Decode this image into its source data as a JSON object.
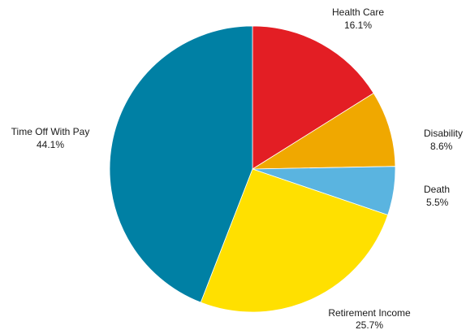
{
  "chart_data": {
    "type": "pie",
    "title": "",
    "slices": [
      {
        "label": "Health Care",
        "value": 16.1,
        "value_label": "16.1%",
        "color": "#e31e24"
      },
      {
        "label": "Disability",
        "value": 8.6,
        "value_label": "8.6%",
        "color": "#f0a800"
      },
      {
        "label": "Death",
        "value": 5.5,
        "value_label": "5.5%",
        "color": "#5ab4e0"
      },
      {
        "label": "Retirement Income",
        "value": 25.7,
        "value_label": "25.7%",
        "color": "#ffe000"
      },
      {
        "label": "Time Off With Pay",
        "value": 44.1,
        "value_label": "44.1%",
        "color": "#0080a4"
      }
    ],
    "start_angle": "12 o'clock",
    "direction": "clockwise"
  }
}
